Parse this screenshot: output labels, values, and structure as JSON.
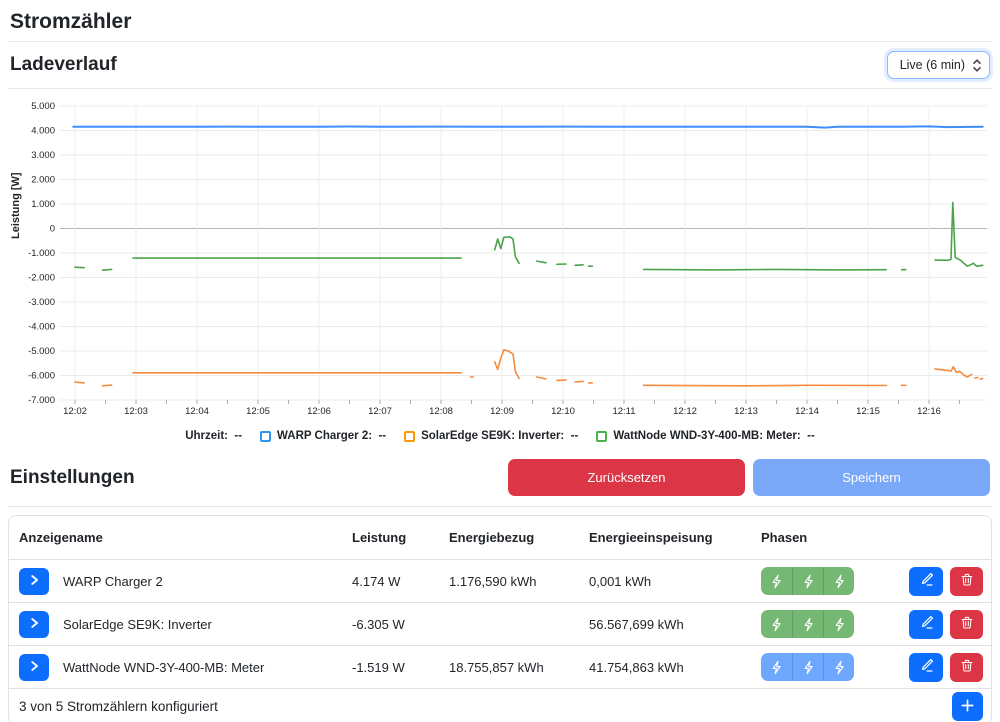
{
  "page_title": "Stromzähler",
  "chart_section": {
    "title": "Ladeverlauf",
    "interval_select": {
      "value": "Live (6 min)"
    }
  },
  "chart_data": {
    "type": "line",
    "title": "",
    "xlabel": "Uhrzeit",
    "ylabel": "Leistung [W]",
    "ylim": [
      -7000,
      5000
    ],
    "grid": true,
    "legend_position": "bottom",
    "x_ticks": [
      "12:02",
      "12:03",
      "12:04",
      "12:05",
      "12:06",
      "12:07",
      "12:08",
      "12:09",
      "12:10",
      "12:11",
      "12:12",
      "12:13",
      "12:14",
      "12:15",
      "12:16"
    ],
    "y_ticks": [
      "5.000",
      "4.000",
      "3.000",
      "2.000",
      "1.000",
      "0",
      "-1.000",
      "-2.000",
      "-3.000",
      "-4.000",
      "-5.000",
      "-6.000",
      "-7.000"
    ],
    "y_tick_values": [
      5000,
      4000,
      3000,
      2000,
      1000,
      0,
      -1000,
      -2000,
      -3000,
      -4000,
      -5000,
      -6000,
      -7000
    ],
    "x_unit": "minutes after 12:00",
    "legend": [
      {
        "label": "Uhrzeit:",
        "value": "--",
        "color": null
      },
      {
        "label": "WARP Charger 2:",
        "value": "--",
        "color": "#2d96f1"
      },
      {
        "label": "SolarEdge SE9K: Inverter:",
        "value": "--",
        "color": "#ff9800"
      },
      {
        "label": "WattNode WND-3Y-400-MB: Meter:",
        "value": "--",
        "color": "#4caf50"
      }
    ],
    "series": [
      {
        "name": "WARP Charger 2",
        "color": "#3f8efc",
        "width": 2,
        "points": [
          [
            1.97,
            4150
          ],
          [
            3,
            4150
          ],
          [
            4,
            4150
          ],
          [
            4.5,
            4160
          ],
          [
            5,
            4150
          ],
          [
            6,
            4155
          ],
          [
            6.5,
            4165
          ],
          [
            7,
            4150
          ],
          [
            8,
            4158
          ],
          [
            9,
            4150
          ],
          [
            10,
            4158
          ],
          [
            11,
            4150
          ],
          [
            12,
            4156
          ],
          [
            13,
            4150
          ],
          [
            14,
            4150
          ],
          [
            14.3,
            4118
          ],
          [
            14.5,
            4150
          ],
          [
            15.5,
            4150
          ],
          [
            16,
            4168
          ],
          [
            16.3,
            4140
          ],
          [
            16.88,
            4150
          ]
        ]
      },
      {
        "name": "SolarEdge SE9K: Inverter",
        "color": "#f58b3e",
        "width": 1.6,
        "points": [
          [
            2.0,
            -6270
          ],
          [
            2.15,
            -6300
          ],
          null,
          [
            2.45,
            -6420
          ],
          [
            2.6,
            -6390
          ],
          null,
          [
            2.95,
            -5890
          ],
          [
            8.33,
            -5890
          ],
          null,
          [
            8.48,
            -6060
          ],
          [
            8.53,
            -6060
          ],
          null,
          [
            8.88,
            -5450
          ],
          [
            8.93,
            -5750
          ],
          [
            8.98,
            -5300
          ],
          [
            9.03,
            -4950
          ],
          [
            9.1,
            -5000
          ],
          [
            9.18,
            -5120
          ],
          [
            9.22,
            -5850
          ],
          [
            9.28,
            -6120
          ],
          null,
          [
            9.57,
            -6060
          ],
          [
            9.72,
            -6140
          ],
          null,
          [
            9.9,
            -6200
          ],
          [
            10.05,
            -6180
          ],
          null,
          [
            10.2,
            -6260
          ],
          [
            10.33,
            -6240
          ],
          null,
          [
            10.42,
            -6300
          ],
          [
            10.48,
            -6300
          ],
          null,
          [
            11.32,
            -6400
          ],
          [
            13,
            -6420
          ],
          [
            14,
            -6400
          ],
          [
            15.3,
            -6410
          ],
          null,
          [
            15.55,
            -6400
          ],
          [
            15.62,
            -6400
          ],
          null,
          [
            16.1,
            -5730
          ],
          [
            16.3,
            -5790
          ],
          [
            16.36,
            -5820
          ],
          [
            16.4,
            -5640
          ],
          [
            16.45,
            -5880
          ],
          [
            16.5,
            -5830
          ],
          [
            16.58,
            -6000
          ],
          [
            16.63,
            -6060
          ],
          [
            16.7,
            -5950
          ],
          null,
          [
            16.75,
            -6100
          ],
          [
            16.8,
            -6080
          ],
          null,
          [
            16.84,
            -6150
          ],
          [
            16.88,
            -6120
          ]
        ]
      },
      {
        "name": "WattNode WND-3Y-400-MB: Meter",
        "color": "#4aa34a",
        "width": 1.6,
        "points": [
          [
            2.0,
            -1580
          ],
          [
            2.15,
            -1600
          ],
          null,
          [
            2.45,
            -1700
          ],
          [
            2.6,
            -1670
          ],
          null,
          [
            2.95,
            -1210
          ],
          [
            8.33,
            -1210
          ],
          null,
          [
            8.88,
            -870
          ],
          [
            8.93,
            -430
          ],
          [
            8.98,
            -820
          ],
          [
            9.03,
            -360
          ],
          [
            9.13,
            -340
          ],
          [
            9.18,
            -430
          ],
          [
            9.22,
            -1150
          ],
          [
            9.28,
            -1420
          ],
          null,
          [
            9.57,
            -1330
          ],
          [
            9.72,
            -1400
          ],
          null,
          [
            9.9,
            -1460
          ],
          [
            10.05,
            -1450
          ],
          null,
          [
            10.2,
            -1500
          ],
          [
            10.33,
            -1480
          ],
          null,
          [
            10.42,
            -1540
          ],
          [
            10.48,
            -1540
          ],
          null,
          [
            11.32,
            -1670
          ],
          [
            12.5,
            -1690
          ],
          [
            13.5,
            -1670
          ],
          [
            14.5,
            -1690
          ],
          [
            15.3,
            -1680
          ],
          null,
          [
            15.55,
            -1680
          ],
          [
            15.62,
            -1680
          ],
          null,
          [
            16.1,
            -1290
          ],
          [
            16.32,
            -1300
          ],
          [
            16.36,
            -1250
          ],
          [
            16.39,
            1060
          ],
          [
            16.43,
            -1180
          ],
          [
            16.52,
            -1300
          ],
          [
            16.58,
            -1440
          ],
          [
            16.63,
            -1540
          ],
          [
            16.68,
            -1480
          ],
          [
            16.73,
            -1420
          ],
          [
            16.78,
            -1540
          ],
          [
            16.88,
            -1500
          ]
        ]
      }
    ]
  },
  "einstellungen": {
    "title": "Einstellungen",
    "reset_label": "Zurücksetzen",
    "save_label": "Speichern",
    "phase_colors": {
      "green": "#74b874",
      "blue": "#6ea8fe"
    },
    "table": {
      "headers": [
        "Anzeigename",
        "Leistung",
        "Energiebezug",
        "Energieeinspeisung",
        "Phasen"
      ],
      "rows": [
        {
          "name": "WARP Charger 2",
          "leistung": "4.174 W",
          "energiebezug": "1.176,590 kWh",
          "energieeinspeisung": "0,001 kWh",
          "phases_color": "green",
          "phase_count": 3
        },
        {
          "name": "SolarEdge SE9K: Inverter",
          "leistung": "-6.305 W",
          "energiebezug": "",
          "energieeinspeisung": "56.567,699 kWh",
          "phases_color": "green",
          "phase_count": 3
        },
        {
          "name": "WattNode WND-3Y-400-MB: Meter",
          "leistung": "-1.519 W",
          "energiebezug": "18.755,857 kWh",
          "energieeinspeisung": "41.754,863 kWh",
          "phases_color": "blue",
          "phase_count": 3
        }
      ],
      "footer_status": "3 von 5 Stromzählern konfiguriert"
    }
  }
}
